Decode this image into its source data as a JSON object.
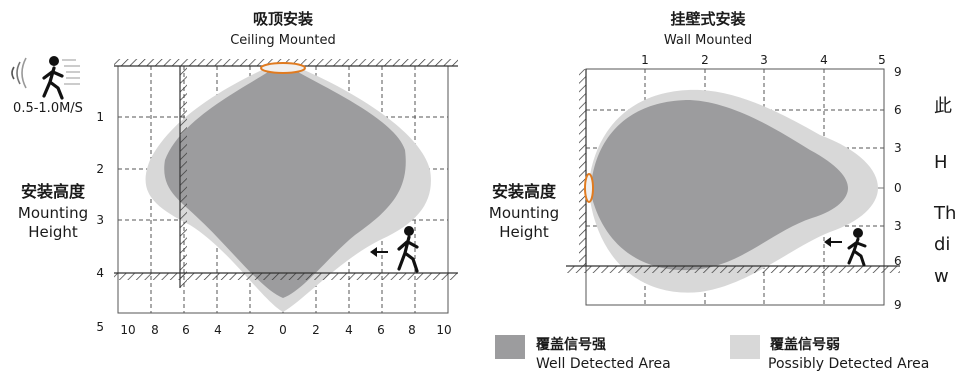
{
  "ceiling": {
    "title_zh": "吸顶安装",
    "title_en": "Ceiling Mounted",
    "speed": "0.5-1.0M/S",
    "height_zh": "安装高度",
    "height_en_1": "Mounting",
    "height_en_2": "Height",
    "y_ticks": [
      "1",
      "2",
      "3",
      "4",
      "5"
    ],
    "x_ticks": [
      "10",
      "8",
      "6",
      "4",
      "2",
      "0",
      "2",
      "4",
      "6",
      "8",
      "10"
    ]
  },
  "wall": {
    "title_zh": "挂壁式安装",
    "title_en": "Wall Mounted",
    "height_zh": "安装高度",
    "height_en_1": "Mounting",
    "height_en_2": "Height",
    "top_ticks": [
      "1",
      "2",
      "3",
      "4",
      "5"
    ],
    "right_ticks": [
      "9",
      "6",
      "3",
      "0",
      "3",
      "6",
      "9"
    ]
  },
  "legend": {
    "strong_zh": "覆盖信号强",
    "strong_en": "Well Detected Area",
    "weak_zh": "覆盖信号弱",
    "weak_en": "Possibly Detected Area",
    "strong_color": "#9c9c9e",
    "weak_color": "#d8d8d8"
  },
  "side_text": [
    "此",
    "H",
    "Th",
    "di",
    "w"
  ]
}
